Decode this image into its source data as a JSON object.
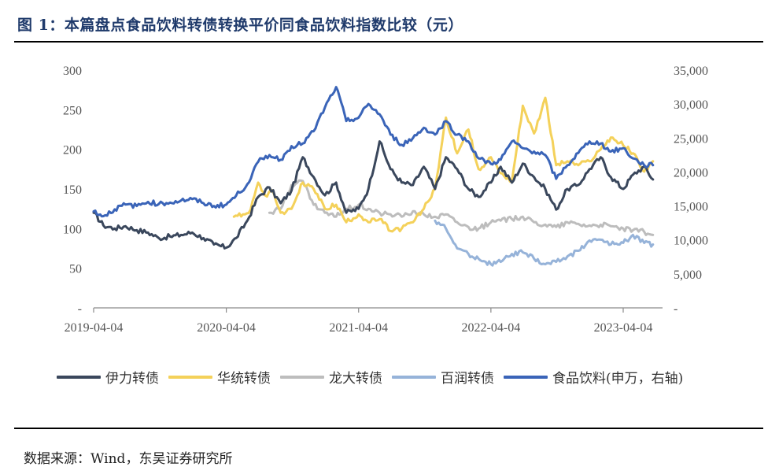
{
  "title": "图 1：本篇盘点食品饮料转债转换平价同食品饮料指数比较（元）",
  "source": "数据来源：Wind，东吴证券研究所",
  "chart_data": {
    "type": "line",
    "x_ticks": [
      "2019-04-04",
      "2020-04-04",
      "2021-04-04",
      "2022-04-04",
      "2023-04-04"
    ],
    "y_left": {
      "range": [
        0,
        300
      ],
      "ticks": [
        "300",
        "250",
        "200",
        "150",
        "100",
        "50",
        "-"
      ]
    },
    "y_right": {
      "range": [
        0,
        35000
      ],
      "ticks": [
        "35,000",
        "30,000",
        "25,000",
        "20,000",
        "15,000",
        "10,000",
        "5,000",
        "-"
      ]
    },
    "series": [
      {
        "name": "伊力转债",
        "color": "#3a475c",
        "axis": "left",
        "points": [
          [
            "2019-04-04",
            120
          ],
          [
            "2019-05-01",
            104
          ],
          [
            "2019-06-01",
            100
          ],
          [
            "2019-07-01",
            103
          ],
          [
            "2019-08-01",
            98
          ],
          [
            "2019-09-01",
            95
          ],
          [
            "2019-10-01",
            88
          ],
          [
            "2019-11-01",
            90
          ],
          [
            "2019-12-01",
            92
          ],
          [
            "2020-01-01",
            95
          ],
          [
            "2020-02-01",
            88
          ],
          [
            "2020-03-01",
            80
          ],
          [
            "2020-04-04",
            76
          ],
          [
            "2020-05-01",
            88
          ],
          [
            "2020-06-01",
            110
          ],
          [
            "2020-07-01",
            140
          ],
          [
            "2020-08-01",
            152
          ],
          [
            "2020-09-01",
            132
          ],
          [
            "2020-10-01",
            148
          ],
          [
            "2020-11-01",
            190
          ],
          [
            "2020-12-01",
            165
          ],
          [
            "2021-01-01",
            142
          ],
          [
            "2021-02-01",
            158
          ],
          [
            "2021-03-01",
            120
          ],
          [
            "2021-04-04",
            125
          ],
          [
            "2021-05-01",
            150
          ],
          [
            "2021-06-01",
            210
          ],
          [
            "2021-07-01",
            175
          ],
          [
            "2021-08-01",
            158
          ],
          [
            "2021-09-01",
            155
          ],
          [
            "2021-10-01",
            178
          ],
          [
            "2021-11-01",
            150
          ],
          [
            "2021-12-01",
            190
          ],
          [
            "2022-01-01",
            175
          ],
          [
            "2022-02-01",
            150
          ],
          [
            "2022-03-01",
            140
          ],
          [
            "2022-04-04",
            158
          ],
          [
            "2022-05-01",
            178
          ],
          [
            "2022-06-01",
            158
          ],
          [
            "2022-07-01",
            182
          ],
          [
            "2022-08-01",
            165
          ],
          [
            "2022-09-01",
            150
          ],
          [
            "2022-10-01",
            124
          ],
          [
            "2022-11-01",
            150
          ],
          [
            "2022-12-01",
            155
          ],
          [
            "2023-01-01",
            175
          ],
          [
            "2023-02-01",
            190
          ],
          [
            "2023-03-01",
            165
          ],
          [
            "2023-04-04",
            150
          ],
          [
            "2023-05-01",
            168
          ],
          [
            "2023-06-01",
            178
          ],
          [
            "2023-06-25",
            162
          ]
        ]
      },
      {
        "name": "华统转债",
        "color": "#f4d15a",
        "axis": "left",
        "points": [
          [
            "2020-04-25",
            115
          ],
          [
            "2020-05-20",
            118
          ],
          [
            "2020-06-10",
            124
          ],
          [
            "2020-07-01",
            158
          ],
          [
            "2020-07-20",
            142
          ],
          [
            "2020-08-10",
            148
          ],
          [
            "2020-09-01",
            120
          ],
          [
            "2020-10-01",
            125
          ],
          [
            "2020-11-01",
            158
          ],
          [
            "2020-12-01",
            150
          ],
          [
            "2021-01-01",
            125
          ],
          [
            "2021-02-01",
            130
          ],
          [
            "2021-03-01",
            108
          ],
          [
            "2021-04-04",
            118
          ],
          [
            "2021-05-01",
            108
          ],
          [
            "2021-06-01",
            112
          ],
          [
            "2021-07-01",
            97
          ],
          [
            "2021-08-01",
            100
          ],
          [
            "2021-09-01",
            108
          ],
          [
            "2021-10-01",
            125
          ],
          [
            "2021-11-01",
            150
          ],
          [
            "2021-12-01",
            240
          ],
          [
            "2022-01-01",
            195
          ],
          [
            "2022-02-01",
            225
          ],
          [
            "2022-03-01",
            175
          ],
          [
            "2022-04-04",
            190
          ],
          [
            "2022-05-01",
            170
          ],
          [
            "2022-06-01",
            160
          ],
          [
            "2022-07-01",
            255
          ],
          [
            "2022-08-01",
            220
          ],
          [
            "2022-09-01",
            265
          ],
          [
            "2022-10-01",
            180
          ],
          [
            "2022-11-01",
            185
          ],
          [
            "2022-12-01",
            180
          ],
          [
            "2023-01-01",
            185
          ],
          [
            "2023-02-01",
            200
          ],
          [
            "2023-03-01",
            215
          ],
          [
            "2023-04-04",
            205
          ],
          [
            "2023-05-01",
            195
          ],
          [
            "2023-06-01",
            172
          ],
          [
            "2023-06-25",
            185
          ]
        ]
      },
      {
        "name": "龙大转债",
        "color": "#bdbdbd",
        "axis": "left",
        "points": [
          [
            "2020-08-01",
            120
          ],
          [
            "2020-09-01",
            125
          ],
          [
            "2020-10-01",
            155
          ],
          [
            "2020-11-01",
            160
          ],
          [
            "2020-12-01",
            130
          ],
          [
            "2021-01-01",
            120
          ],
          [
            "2021-02-01",
            115
          ],
          [
            "2021-03-01",
            125
          ],
          [
            "2021-04-04",
            130
          ],
          [
            "2021-05-01",
            125
          ],
          [
            "2021-06-01",
            120
          ],
          [
            "2021-07-01",
            118
          ],
          [
            "2021-08-01",
            115
          ],
          [
            "2021-09-01",
            122
          ],
          [
            "2021-10-01",
            118
          ],
          [
            "2021-11-01",
            115
          ],
          [
            "2021-12-01",
            118
          ],
          [
            "2022-01-01",
            108
          ],
          [
            "2022-02-01",
            102
          ],
          [
            "2022-03-01",
            100
          ],
          [
            "2022-04-04",
            108
          ],
          [
            "2022-05-01",
            110
          ],
          [
            "2022-06-01",
            112
          ],
          [
            "2022-07-01",
            115
          ],
          [
            "2022-08-01",
            108
          ],
          [
            "2022-09-01",
            105
          ],
          [
            "2022-10-01",
            102
          ],
          [
            "2022-11-01",
            108
          ],
          [
            "2022-12-01",
            106
          ],
          [
            "2023-01-01",
            104
          ],
          [
            "2023-02-01",
            105
          ],
          [
            "2023-03-01",
            103
          ],
          [
            "2023-04-04",
            100
          ],
          [
            "2023-05-01",
            98
          ],
          [
            "2023-06-01",
            96
          ],
          [
            "2023-06-25",
            92
          ]
        ]
      },
      {
        "name": "百润转债",
        "color": "#96b3d9",
        "axis": "left",
        "points": [
          [
            "2021-11-01",
            110
          ],
          [
            "2021-12-01",
            100
          ],
          [
            "2022-01-01",
            75
          ],
          [
            "2022-02-01",
            68
          ],
          [
            "2022-03-01",
            62
          ],
          [
            "2022-04-04",
            55
          ],
          [
            "2022-05-01",
            58
          ],
          [
            "2022-06-01",
            68
          ],
          [
            "2022-07-01",
            70
          ],
          [
            "2022-08-01",
            62
          ],
          [
            "2022-09-01",
            55
          ],
          [
            "2022-10-01",
            58
          ],
          [
            "2022-11-01",
            65
          ],
          [
            "2022-12-01",
            72
          ],
          [
            "2023-01-01",
            85
          ],
          [
            "2023-02-01",
            86
          ],
          [
            "2023-03-01",
            80
          ],
          [
            "2023-04-04",
            82
          ],
          [
            "2023-05-01",
            92
          ],
          [
            "2023-06-01",
            82
          ],
          [
            "2023-06-25",
            80
          ]
        ]
      },
      {
        "name": "食品饮料(申万，右轴)",
        "color": "#3a64b8",
        "axis": "right",
        "points": [
          [
            "2019-04-04",
            14200
          ],
          [
            "2019-05-01",
            13500
          ],
          [
            "2019-06-01",
            14500
          ],
          [
            "2019-07-01",
            15200
          ],
          [
            "2019-08-01",
            15000
          ],
          [
            "2019-09-01",
            15600
          ],
          [
            "2019-10-01",
            15300
          ],
          [
            "2019-11-01",
            15500
          ],
          [
            "2019-12-01",
            15800
          ],
          [
            "2020-01-01",
            16000
          ],
          [
            "2020-02-01",
            15400
          ],
          [
            "2020-03-01",
            15000
          ],
          [
            "2020-04-04",
            15200
          ],
          [
            "2020-05-01",
            16500
          ],
          [
            "2020-06-01",
            18200
          ],
          [
            "2020-07-01",
            21500
          ],
          [
            "2020-08-01",
            22500
          ],
          [
            "2020-09-01",
            21800
          ],
          [
            "2020-10-01",
            23800
          ],
          [
            "2020-11-01",
            24200
          ],
          [
            "2020-12-01",
            26000
          ],
          [
            "2021-01-01",
            29500
          ],
          [
            "2021-02-01",
            32500
          ],
          [
            "2021-03-01",
            27500
          ],
          [
            "2021-04-04",
            28000
          ],
          [
            "2021-05-01",
            30000
          ],
          [
            "2021-06-01",
            28500
          ],
          [
            "2021-07-01",
            25500
          ],
          [
            "2021-08-01",
            24000
          ],
          [
            "2021-09-01",
            25000
          ],
          [
            "2021-10-01",
            26500
          ],
          [
            "2021-11-01",
            25500
          ],
          [
            "2021-12-01",
            27500
          ],
          [
            "2022-01-01",
            25500
          ],
          [
            "2022-02-01",
            24500
          ],
          [
            "2022-03-01",
            22000
          ],
          [
            "2022-04-04",
            21200
          ],
          [
            "2022-05-01",
            21800
          ],
          [
            "2022-06-01",
            24500
          ],
          [
            "2022-07-01",
            23500
          ],
          [
            "2022-08-01",
            23000
          ],
          [
            "2022-09-01",
            22500
          ],
          [
            "2022-10-01",
            19000
          ],
          [
            "2022-11-01",
            21000
          ],
          [
            "2022-12-01",
            22800
          ],
          [
            "2023-01-01",
            24500
          ],
          [
            "2023-02-01",
            24200
          ],
          [
            "2023-03-01",
            23000
          ],
          [
            "2023-04-04",
            23500
          ],
          [
            "2023-05-01",
            22000
          ],
          [
            "2023-06-01",
            21000
          ],
          [
            "2023-06-25",
            21000
          ]
        ]
      }
    ]
  }
}
